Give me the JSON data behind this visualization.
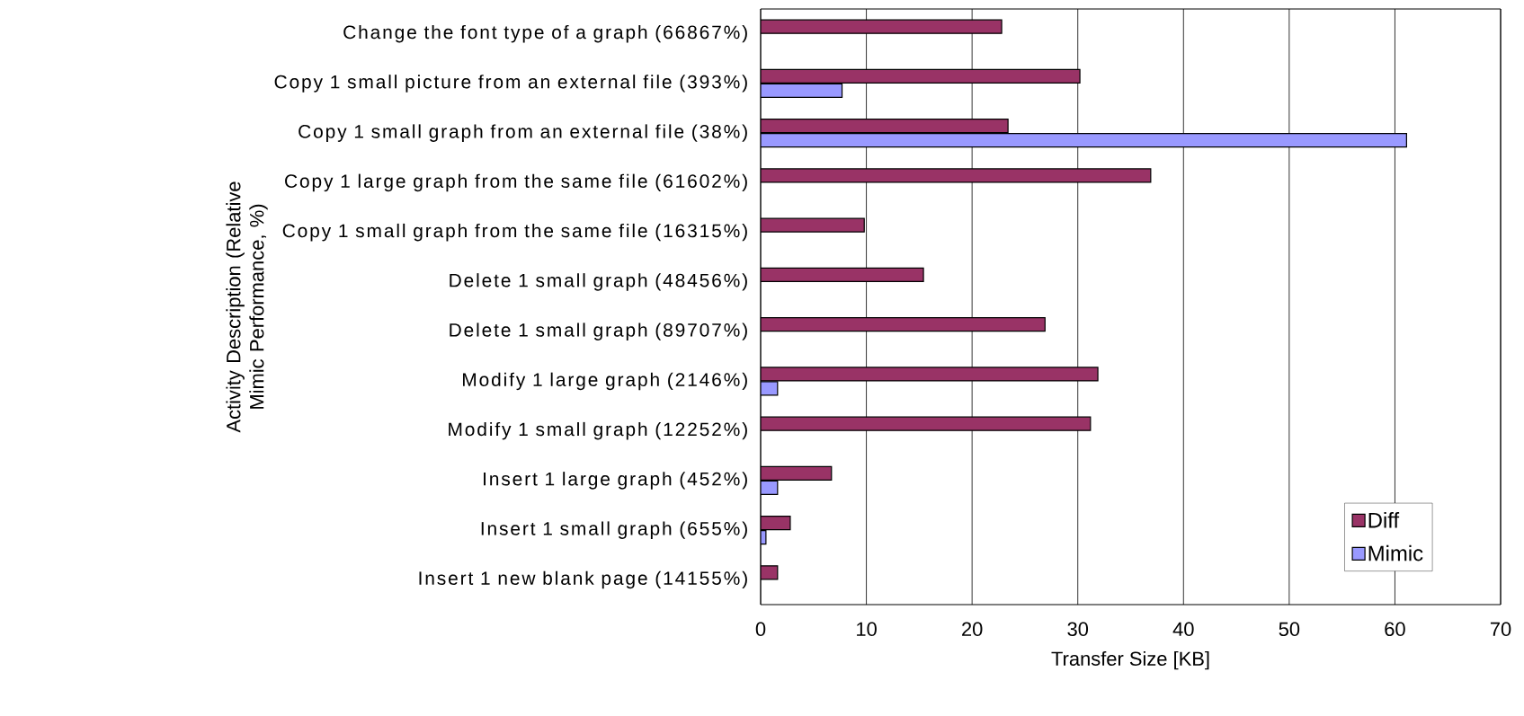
{
  "chart_data": {
    "type": "bar",
    "orientation": "horizontal",
    "xlabel": "Transfer Size [KB]",
    "ylabel": "Activity Description (Relative Mimic Performance, %)",
    "categories": [
      "Change the font type of a graph (66867%)",
      "Copy 1 small picture from an external file (393%)",
      "Copy 1 small graph from an external file (38%)",
      "Copy 1 large graph from the same file (61602%)",
      "Copy 1 small graph from the same file (16315%)",
      "Delete 1 small graph (48456%)",
      "Delete 1 small graph (89707%)",
      "Modify 1 large graph (2146%)",
      "Modify 1 small graph (12252%)",
      "Insert 1 large graph (452%)",
      "Insert 1 small graph (655%)",
      "Insert 1 new blank page (14155%)"
    ],
    "series": [
      {
        "name": "Diff",
        "color": "#993366",
        "values": [
          22.8,
          30.2,
          23.4,
          36.9,
          9.8,
          15.4,
          26.9,
          31.9,
          31.2,
          6.7,
          2.8,
          1.6
        ]
      },
      {
        "name": "Mimic",
        "color": "#9999ff",
        "values": [
          null,
          7.7,
          61.1,
          null,
          null,
          null,
          null,
          1.6,
          null,
          1.6,
          0.5,
          null
        ]
      }
    ],
    "xlim": [
      0,
      70
    ],
    "xticks": [
      0,
      10,
      20,
      30,
      40,
      50,
      60,
      70
    ],
    "grid": "x",
    "legend": "bottom right"
  }
}
